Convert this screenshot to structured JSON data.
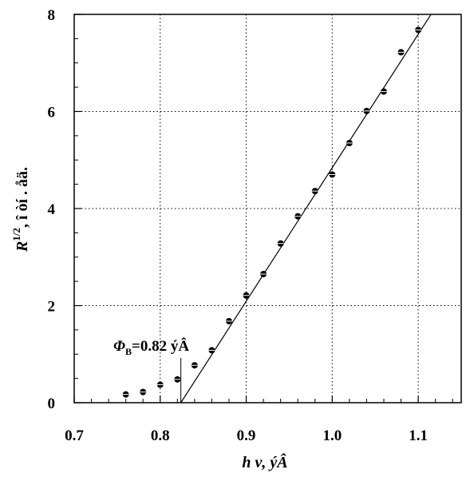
{
  "chart_data": {
    "type": "scatter",
    "title": "",
    "xlabel": "h ν, ýÂ",
    "ylabel_main": "R",
    "ylabel_sup": "1/2",
    "ylabel_rest": ", î òí . åä.",
    "xlim": [
      0.7,
      1.15
    ],
    "ylim": [
      0,
      8
    ],
    "xticks": [
      "0.7",
      "0.8",
      "0.9",
      "1.0",
      "1.1"
    ],
    "yticks": [
      "0",
      "2",
      "4",
      "6",
      "8"
    ],
    "grid": "dotted",
    "series": [
      {
        "x": [
          0.76,
          0.78,
          0.8,
          0.82,
          0.84,
          0.86,
          0.88,
          0.9,
          0.92,
          0.94,
          0.96,
          0.98,
          1.0,
          1.02,
          1.04,
          1.06,
          1.08,
          1.1
        ],
        "y": [
          0.17,
          0.22,
          0.37,
          0.48,
          0.77,
          1.08,
          1.68,
          2.21,
          2.65,
          3.28,
          3.84,
          4.36,
          4.7,
          5.35,
          6.01,
          6.41,
          7.22,
          7.68
        ]
      }
    ],
    "fit_line": {
      "x0": 0.824,
      "x1": 1.115,
      "slope": 27.5
    },
    "annotation": {
      "symbol": "Φ",
      "subscript": "B",
      "text": "=0.82 ýÂ",
      "x": 0.824
    }
  }
}
